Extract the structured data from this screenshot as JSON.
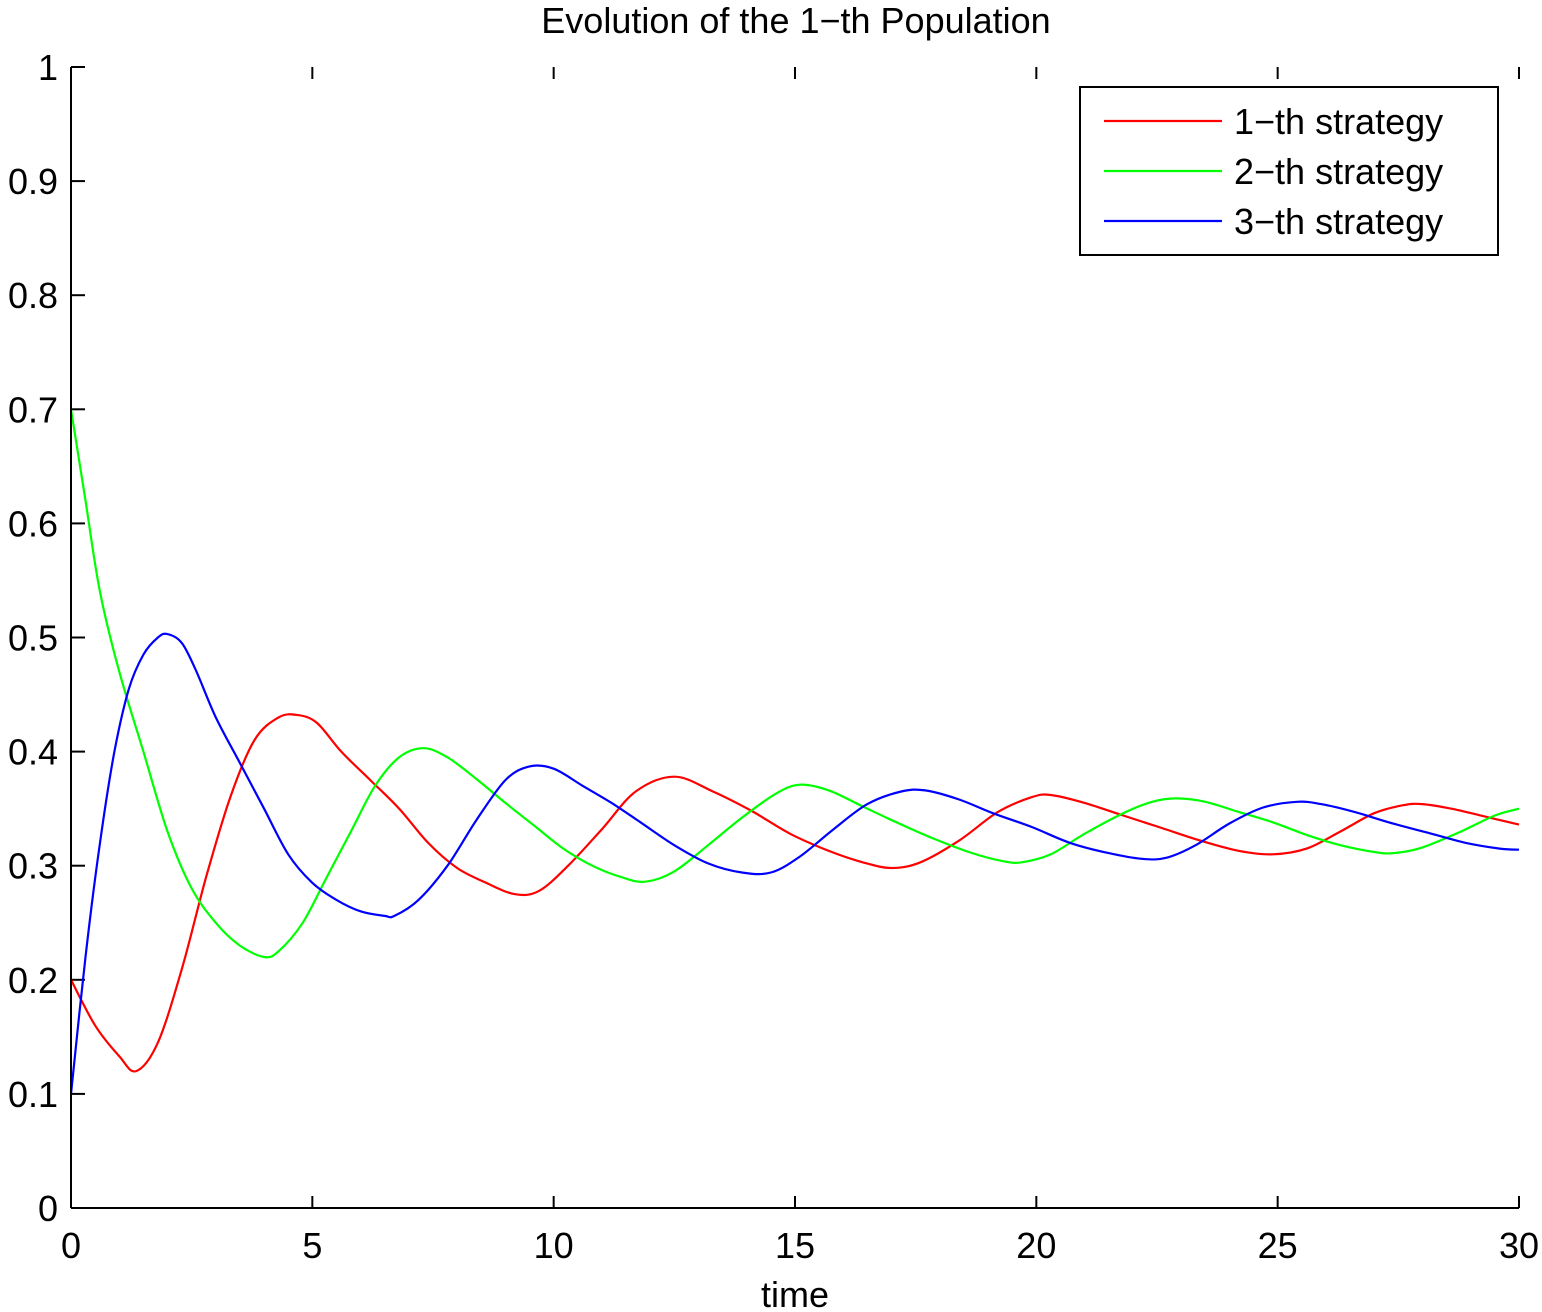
{
  "chart_data": {
    "type": "line",
    "title": "Evolution of the 1−th Population",
    "xlabel": "time",
    "ylabel": "",
    "xlim": [
      0,
      30
    ],
    "ylim": [
      0,
      1
    ],
    "xticks": [
      0,
      5,
      10,
      15,
      20,
      25,
      30
    ],
    "xtick_labels": [
      "0",
      "5",
      "10",
      "15",
      "20",
      "25",
      "30"
    ],
    "yticks": [
      0,
      0.1,
      0.2,
      0.3,
      0.4,
      0.5,
      0.6,
      0.7,
      0.8,
      0.9,
      1
    ],
    "ytick_labels": [
      "0",
      "0.1",
      "0.2",
      "0.3",
      "0.4",
      "0.5",
      "0.6",
      "0.7",
      "0.8",
      "0.9",
      "1"
    ],
    "grid": false,
    "legend_position": "top-right",
    "series": [
      {
        "name": "1−th strategy",
        "color": "#ff0000",
        "x": [
          0,
          0.5,
          1.0,
          1.35,
          1.8,
          2.3,
          2.8,
          3.3,
          3.8,
          4.3,
          4.7,
          5.1,
          5.6,
          6.2,
          6.8,
          7.4,
          8.0,
          8.6,
          9.2,
          9.7,
          10.3,
          11.0,
          11.7,
          12.5,
          13.3,
          14.1,
          14.9,
          15.7,
          16.4,
          17.0,
          17.6,
          18.4,
          19.2,
          19.9,
          20.3,
          21.0,
          21.8,
          22.6,
          23.4,
          24.2,
          24.9,
          25.6,
          26.3,
          27.0,
          27.6,
          28.0,
          28.6,
          29.3,
          30.0
        ],
        "y": [
          0.2,
          0.16,
          0.133,
          0.12,
          0.145,
          0.21,
          0.29,
          0.36,
          0.41,
          0.43,
          0.432,
          0.425,
          0.4,
          0.375,
          0.35,
          0.32,
          0.298,
          0.285,
          0.275,
          0.278,
          0.3,
          0.332,
          0.365,
          0.378,
          0.365,
          0.348,
          0.328,
          0.313,
          0.303,
          0.298,
          0.303,
          0.322,
          0.347,
          0.36,
          0.362,
          0.355,
          0.344,
          0.333,
          0.322,
          0.313,
          0.31,
          0.315,
          0.33,
          0.346,
          0.353,
          0.354,
          0.35,
          0.343,
          0.336
        ]
      },
      {
        "name": "2−th strategy",
        "color": "#00ff00",
        "x": [
          0,
          0.3,
          0.6,
          1.0,
          1.5,
          2.0,
          2.5,
          3.0,
          3.5,
          4.0,
          4.3,
          4.8,
          5.3,
          5.8,
          6.3,
          6.8,
          7.3,
          7.8,
          8.4,
          9.0,
          9.6,
          10.2,
          10.8,
          11.4,
          11.9,
          12.5,
          13.2,
          13.9,
          14.6,
          15.1,
          15.7,
          16.4,
          17.1,
          17.8,
          18.6,
          19.3,
          19.7,
          20.3,
          21.0,
          21.8,
          22.4,
          22.9,
          23.5,
          24.2,
          24.9,
          25.6,
          26.3,
          27.0,
          27.4,
          28.0,
          28.8,
          29.5,
          30.0
        ],
        "y": [
          0.7,
          0.62,
          0.54,
          0.47,
          0.4,
          0.33,
          0.28,
          0.25,
          0.23,
          0.22,
          0.225,
          0.25,
          0.29,
          0.33,
          0.37,
          0.395,
          0.403,
          0.395,
          0.376,
          0.355,
          0.335,
          0.315,
          0.3,
          0.29,
          0.286,
          0.295,
          0.318,
          0.342,
          0.363,
          0.371,
          0.366,
          0.352,
          0.338,
          0.325,
          0.312,
          0.304,
          0.303,
          0.31,
          0.328,
          0.346,
          0.356,
          0.359,
          0.356,
          0.347,
          0.338,
          0.327,
          0.318,
          0.312,
          0.311,
          0.316,
          0.33,
          0.344,
          0.35
        ]
      },
      {
        "name": "3−th strategy",
        "color": "#0000ff",
        "x": [
          0,
          0.3,
          0.6,
          0.9,
          1.2,
          1.5,
          1.8,
          2.0,
          2.3,
          2.6,
          3.0,
          3.5,
          4.0,
          4.5,
          5.0,
          5.5,
          6.0,
          6.5,
          6.7,
          7.2,
          7.8,
          8.4,
          9.0,
          9.5,
          10.0,
          10.6,
          11.2,
          11.8,
          12.5,
          13.2,
          13.9,
          14.5,
          15.1,
          15.8,
          16.5,
          17.2,
          17.7,
          18.4,
          19.1,
          19.9,
          20.7,
          21.5,
          22.2,
          22.7,
          23.3,
          24.0,
          24.7,
          25.4,
          25.9,
          26.6,
          27.3,
          28.1,
          28.9,
          29.6,
          30.0
        ],
        "y": [
          0.1,
          0.22,
          0.32,
          0.4,
          0.455,
          0.485,
          0.5,
          0.503,
          0.495,
          0.47,
          0.43,
          0.39,
          0.35,
          0.31,
          0.285,
          0.27,
          0.26,
          0.256,
          0.256,
          0.27,
          0.3,
          0.34,
          0.375,
          0.387,
          0.385,
          0.37,
          0.355,
          0.338,
          0.318,
          0.302,
          0.294,
          0.294,
          0.308,
          0.332,
          0.354,
          0.365,
          0.366,
          0.358,
          0.346,
          0.334,
          0.32,
          0.311,
          0.306,
          0.307,
          0.318,
          0.337,
          0.351,
          0.356,
          0.354,
          0.347,
          0.338,
          0.329,
          0.32,
          0.315,
          0.314
        ]
      }
    ]
  }
}
